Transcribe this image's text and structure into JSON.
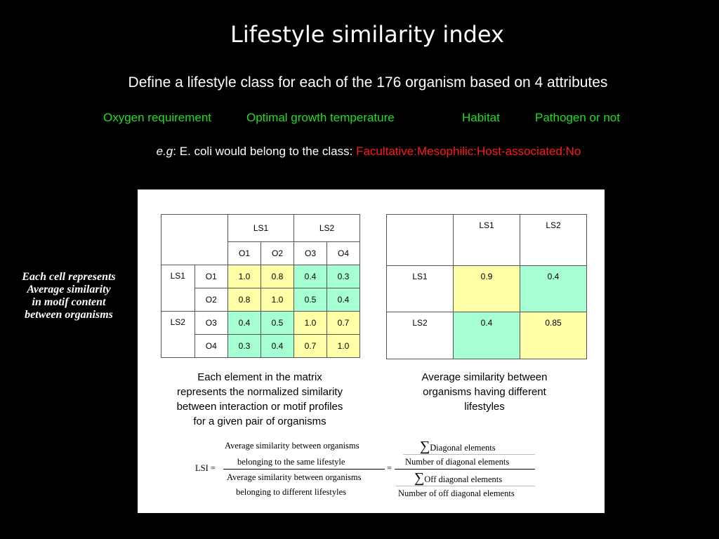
{
  "title": "Lifestyle similarity index",
  "subtitle": "Define a lifestyle class for each of the 176 organism based on 4 attributes",
  "attributes": [
    "Oxygen requirement",
    "Optimal growth temperature",
    "Habitat",
    "Pathogen or not"
  ],
  "example": {
    "prefix_italic": "e.g",
    "text": ": E. coli would belong to the class: ",
    "class_value": "Facultative:Mesophilic:Host-associated:No"
  },
  "side_note": [
    "Each cell represents",
    "Average similarity",
    "in motif content",
    "between organisms"
  ],
  "colors": {
    "attributes": "#22dd22",
    "class_value": "#ff1a1a",
    "same_lifestyle_cell": "#ffffa8",
    "different_lifestyle_cell": "#a6ffd2"
  },
  "matrix1": {
    "col_groups": [
      "LS1",
      "LS2"
    ],
    "col_headers": [
      "O1",
      "O2",
      "O3",
      "O4"
    ],
    "row_groups": [
      "LS1",
      "LS2"
    ],
    "row_headers": [
      "O1",
      "O2",
      "O3",
      "O4"
    ],
    "rows": [
      [
        "1.0",
        "0.8",
        "0.4",
        "0.3"
      ],
      [
        "0.8",
        "1.0",
        "0.5",
        "0.4"
      ],
      [
        "0.4",
        "0.5",
        "1.0",
        "0.7"
      ],
      [
        "0.3",
        "0.4",
        "0.7",
        "1.0"
      ]
    ],
    "caption": [
      "Each element in the matrix",
      "represents the normalized similarity",
      "between interaction or motif profiles",
      "for a given pair of organisms"
    ]
  },
  "matrix2": {
    "col_headers": [
      "LS1",
      "LS2"
    ],
    "row_headers": [
      "LS1",
      "LS2"
    ],
    "rows": [
      [
        "0.9",
        "0.4"
      ],
      [
        "0.4",
        "0.85"
      ]
    ],
    "caption": [
      "Average similarity between",
      "organisms having different",
      "lifestyles"
    ]
  },
  "formula": {
    "lhs": "LSI =",
    "num1": "Average similarity between organisms",
    "num2": "belonging to the same lifestyle",
    "den1": "Average similarity between organisms",
    "den2": "belonging to different lifestyles",
    "equals": "=",
    "sigma": "∑",
    "r_num1": "Diagonal elements",
    "r_num2": "Number of diagonal elements",
    "r_den1": "Off diagonal elements",
    "r_den2": "Number of off diagonal elements"
  }
}
